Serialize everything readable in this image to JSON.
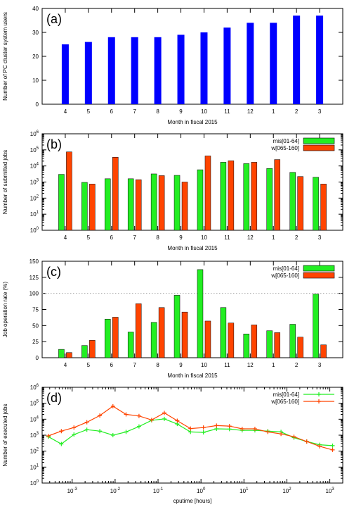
{
  "colors": {
    "blue": "#0000ff",
    "green": "#22ee22",
    "red": "#ff4400",
    "axis": "#000000",
    "refline": "#aaaaaa"
  },
  "chart_data": [
    {
      "type": "bar",
      "panel_label": "(a)",
      "title": "",
      "xlabel": "Month in fiscal 2015",
      "ylabel": "Number of PC cluster system users",
      "categories": [
        "4",
        "5",
        "6",
        "7",
        "8",
        "9",
        "10",
        "11",
        "12",
        "1",
        "2",
        "3"
      ],
      "series": [
        {
          "values": [
            25,
            26,
            28,
            28,
            28,
            29,
            30,
            32,
            34,
            34,
            37,
            37
          ],
          "color": "blue"
        }
      ],
      "ylim": [
        0,
        40
      ],
      "yticks": [
        0,
        10,
        20,
        30,
        40
      ],
      "yscale": "linear",
      "grid": false,
      "legend": "none"
    },
    {
      "type": "bar",
      "panel_label": "(b)",
      "title": "",
      "xlabel": "Month in fiscal 2015",
      "ylabel": "Number of submitted jobs",
      "categories": [
        "4",
        "5",
        "6",
        "7",
        "8",
        "9",
        "10",
        "11",
        "12",
        "1",
        "2",
        "3"
      ],
      "series": [
        {
          "name": "mis[01-64]",
          "values": [
            3000,
            950,
            1600,
            1600,
            3200,
            2600,
            5800,
            17000,
            14000,
            7000,
            4000,
            2000
          ],
          "color": "green"
        },
        {
          "name": "w[065-160]",
          "values": [
            75000,
            750,
            35000,
            1400,
            2500,
            1000,
            42000,
            21000,
            17000,
            25000,
            2200,
            750
          ],
          "color": "red"
        }
      ],
      "ylim": [
        1,
        1000000
      ],
      "yscale": "log",
      "ytick_labels": [
        "10^0",
        "10^1",
        "10^2",
        "10^3",
        "10^4",
        "10^5",
        "10^6"
      ],
      "grid": false,
      "legend": "top-right"
    },
    {
      "type": "bar",
      "panel_label": "(c)",
      "title": "",
      "xlabel": "Month in fiscal 2015",
      "ylabel": "Job operation rate (%)",
      "categories": [
        "4",
        "5",
        "6",
        "7",
        "8",
        "9",
        "10",
        "11",
        "12",
        "1",
        "2",
        "3"
      ],
      "series": [
        {
          "name": "mis[01-64]",
          "values": [
            13,
            19,
            60,
            40,
            55,
            97,
            137,
            78,
            37,
            42,
            52,
            99
          ],
          "color": "green"
        },
        {
          "name": "w[065-160]",
          "values": [
            8,
            27,
            63,
            84,
            78,
            71,
            57,
            54,
            51,
            39,
            32,
            20
          ],
          "color": "red"
        }
      ],
      "ylim": [
        0,
        150
      ],
      "yticks": [
        0,
        25,
        50,
        75,
        100,
        125,
        150
      ],
      "yscale": "linear",
      "reference_line": 100,
      "grid": false,
      "legend": "top-right"
    },
    {
      "type": "line",
      "panel_label": "(d)",
      "title": "",
      "xlabel": "cputime [hours]",
      "ylabel": "Number of executed jobs",
      "xscale": "log",
      "yscale": "log",
      "xlim": [
        0.0002,
        2000
      ],
      "ylim": [
        1,
        1000000
      ],
      "xtick_labels": [
        "10^-3",
        "10^-2",
        "10^-1",
        "10^0",
        "10^1",
        "10^2",
        "10^3"
      ],
      "ytick_labels": [
        "10^0",
        "10^1",
        "10^2",
        "10^3",
        "10^4",
        "10^5",
        "10^6"
      ],
      "x": [
        0.00028,
        0.00056,
        0.0011,
        0.0022,
        0.0044,
        0.0089,
        0.018,
        0.036,
        0.071,
        0.14,
        0.28,
        0.57,
        1.14,
        2.3,
        4.6,
        9.1,
        18,
        36,
        73,
        146,
        290,
        580,
        1160
      ],
      "series": [
        {
          "name": "mis[01-64]",
          "values": [
            800,
            280,
            1100,
            2200,
            1800,
            1000,
            1600,
            3500,
            8500,
            10500,
            5000,
            1600,
            1500,
            2500,
            2400,
            2000,
            2000,
            1800,
            1600,
            700,
            400,
            250,
            220
          ],
          "color": "green"
        },
        {
          "name": "w[065-160]",
          "values": [
            900,
            1800,
            3000,
            6500,
            17000,
            65000,
            20000,
            16000,
            9000,
            25000,
            8000,
            2600,
            3000,
            4000,
            3700,
            2500,
            2500,
            1600,
            1200,
            800,
            400,
            200,
            120
          ],
          "color": "red"
        }
      ],
      "grid": false,
      "legend": "top-right"
    }
  ]
}
